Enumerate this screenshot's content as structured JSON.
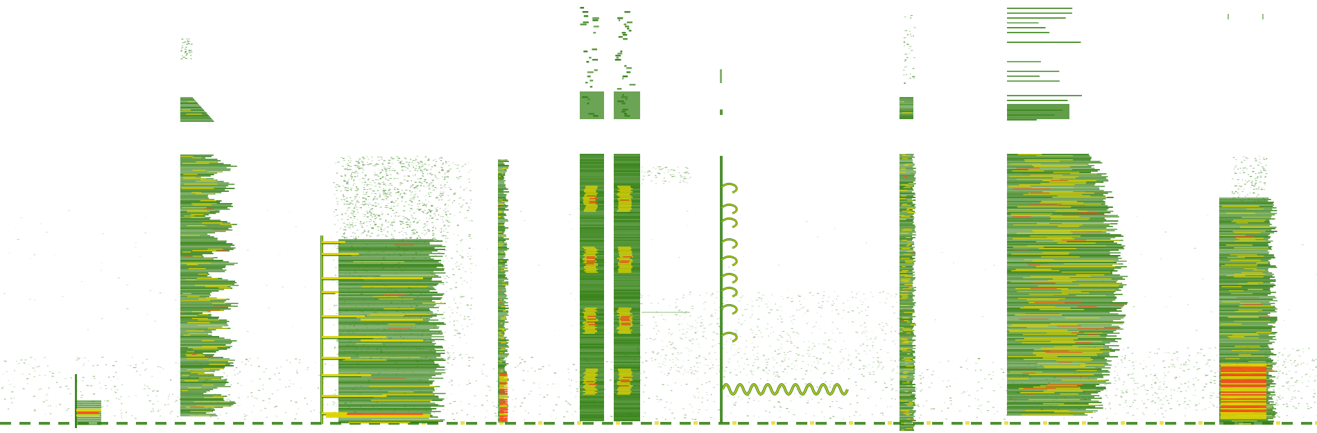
{
  "image": {
    "kind": "spectrogram",
    "background": "#ffffff"
  },
  "palette": {
    "low": "#2e7d0e",
    "mid": "#e3d400",
    "high": "#ff4a18"
  },
  "events": [
    {
      "id": "burst-1",
      "intensity": "high"
    },
    {
      "id": "band-2",
      "intensity": "medium"
    },
    {
      "id": "comb-3",
      "intensity": "high"
    },
    {
      "id": "column-4",
      "intensity": "high"
    },
    {
      "id": "column-pair-5",
      "intensity": "high"
    },
    {
      "id": "chirp-6",
      "intensity": "medium"
    },
    {
      "id": "column-7",
      "intensity": "high"
    },
    {
      "id": "block-8",
      "intensity": "high"
    },
    {
      "id": "block-9",
      "intensity": "high"
    }
  ]
}
